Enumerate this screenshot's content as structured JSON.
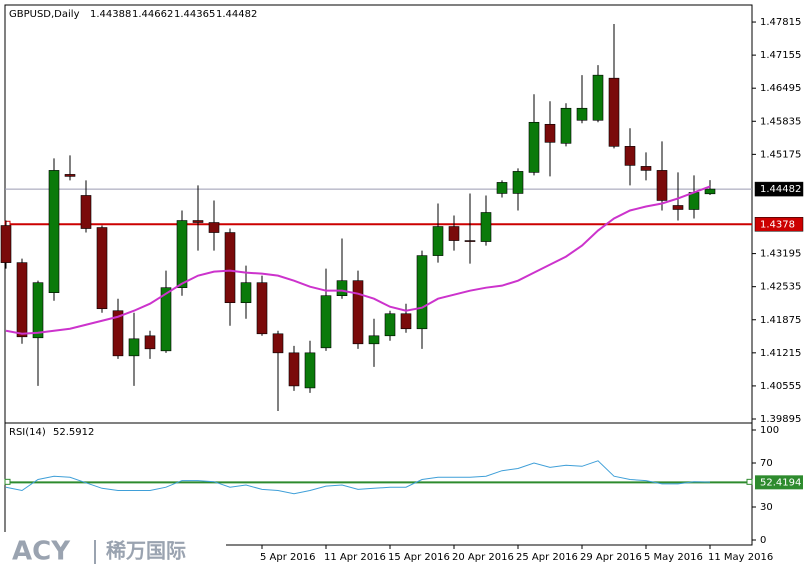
{
  "chart_data": {
    "type": "candlestick",
    "title": "GBPUSD,Daily",
    "categories": [
      null,
      null,
      null,
      null,
      null,
      null,
      null,
      null,
      null,
      null,
      null,
      null,
      null,
      null,
      null,
      null,
      "5 Apr 2016",
      null,
      null,
      null,
      "11 Apr 2016",
      null,
      null,
      null,
      "15 Apr 2016",
      null,
      null,
      null,
      "20 Apr 2016",
      null,
      null,
      null,
      "25 Apr 2016",
      null,
      null,
      null,
      "29 Apr 2016",
      null,
      null,
      null,
      "5 May 2016",
      null,
      null,
      null,
      "11 May 2016"
    ],
    "open": [
      1.43755,
      1.43015,
      1.41515,
      1.42415,
      1.44775,
      1.44355,
      1.43715,
      1.42055,
      1.41155,
      1.41555,
      1.41255,
      1.42515,
      1.43855,
      1.43815,
      1.43615,
      1.42215,
      1.42615,
      1.41595,
      1.41215,
      1.40515,
      1.41315,
      1.42355,
      1.42655,
      1.41395,
      1.41555,
      1.41995,
      1.41695,
      1.43155,
      1.43735,
      1.43455,
      1.43435,
      1.44395,
      1.44395,
      1.44815,
      1.45775,
      1.45395,
      1.45855,
      1.45855,
      1.46695,
      1.45335,
      1.44935,
      1.44855,
      1.44155,
      1.44075,
      1.44388
    ],
    "high": [
      1.43855,
      1.43095,
      1.42655,
      1.45095,
      1.45155,
      1.44655,
      1.43755,
      1.42295,
      1.42015,
      1.41655,
      1.42855,
      1.44055,
      1.44555,
      1.44255,
      1.43695,
      1.42955,
      1.42755,
      1.41655,
      1.41355,
      1.41455,
      1.42895,
      1.43495,
      1.42855,
      1.41895,
      1.42055,
      1.42195,
      1.43255,
      1.44195,
      1.43955,
      1.44395,
      1.44355,
      1.44655,
      1.44895,
      1.46375,
      1.46235,
      1.46195,
      1.46755,
      1.46955,
      1.47775,
      1.45695,
      1.45215,
      1.45435,
      1.44815,
      1.44755,
      1.44662
    ],
    "low": [
      1.42895,
      1.41395,
      1.40555,
      1.42255,
      1.44655,
      1.43615,
      1.42015,
      1.41095,
      1.40555,
      1.41095,
      1.41215,
      1.42355,
      1.43255,
      1.43255,
      1.41755,
      1.41895,
      1.41555,
      1.40055,
      1.40455,
      1.40415,
      1.41255,
      1.42295,
      1.41295,
      1.40935,
      1.41455,
      1.41615,
      1.41295,
      1.43015,
      1.43255,
      1.42995,
      1.43355,
      1.44315,
      1.44055,
      1.44755,
      1.44735,
      1.45335,
      1.45795,
      1.45815,
      1.45295,
      1.44555,
      1.44655,
      1.44055,
      1.43855,
      1.43895,
      1.44365
    ],
    "close": [
      1.43015,
      1.41535,
      1.42615,
      1.44855,
      1.44735,
      1.43695,
      1.42095,
      1.41155,
      1.41495,
      1.41295,
      1.42515,
      1.43855,
      1.43815,
      1.43615,
      1.42215,
      1.42615,
      1.41595,
      1.41215,
      1.40555,
      1.41215,
      1.42355,
      1.42655,
      1.41395,
      1.41555,
      1.41995,
      1.41695,
      1.43155,
      1.43735,
      1.43455,
      1.43435,
      1.44015,
      1.44615,
      1.44835,
      1.45815,
      1.45415,
      1.46095,
      1.46095,
      1.46755,
      1.45335,
      1.44955,
      1.44855,
      1.44255,
      1.44075,
      1.44415,
      1.44482
    ],
    "up_color": "#0a7a0a",
    "down_color": "#7a0a0a",
    "ma": {
      "color": "#cc33cc",
      "values": [
        1.41655,
        1.41595,
        1.41615,
        1.41655,
        1.41695,
        1.41775,
        1.41855,
        1.41935,
        1.42055,
        1.42195,
        1.42395,
        1.42595,
        1.42755,
        1.42835,
        1.42855,
        1.42815,
        1.42795,
        1.42755,
        1.42655,
        1.42535,
        1.42455,
        1.42455,
        1.42395,
        1.42295,
        1.42135,
        1.42055,
        1.42115,
        1.42295,
        1.42375,
        1.42455,
        1.42515,
        1.42555,
        1.42655,
        1.42815,
        1.42975,
        1.43135,
        1.43355,
        1.43655,
        1.43895,
        1.44055,
        1.44135,
        1.44195,
        1.44295,
        1.44415,
        1.44535
      ]
    },
    "ylim": [
      1.39815,
      1.48155
    ],
    "yticks": [
      1.47815,
      1.47155,
      1.46495,
      1.45835,
      1.45175,
      1.43195,
      1.42535,
      1.41875,
      1.41215,
      1.40555,
      1.39895
    ],
    "hline": {
      "value": 1.4378,
      "color": "#cc0000"
    },
    "rsi": {
      "label": "RSI(14)",
      "color": "#3f9fd8",
      "values": [
        48,
        45,
        55,
        58,
        57,
        52,
        47,
        45,
        45,
        45,
        48,
        54,
        54,
        53,
        48,
        50,
        46,
        45,
        42,
        45,
        49,
        50,
        46,
        47,
        48,
        48,
        55,
        57,
        57,
        57,
        58,
        63,
        65,
        70,
        66,
        68,
        67,
        72,
        58,
        55,
        54,
        51,
        51,
        53,
        52.5912
      ],
      "level": 52.4194,
      "level_color": "#2e8b2e",
      "ylim": [
        0,
        100
      ],
      "yticks": [
        100,
        70,
        30,
        0
      ]
    },
    "watermark": "ACY",
    "watermark_cn": "稀万国际"
  }
}
